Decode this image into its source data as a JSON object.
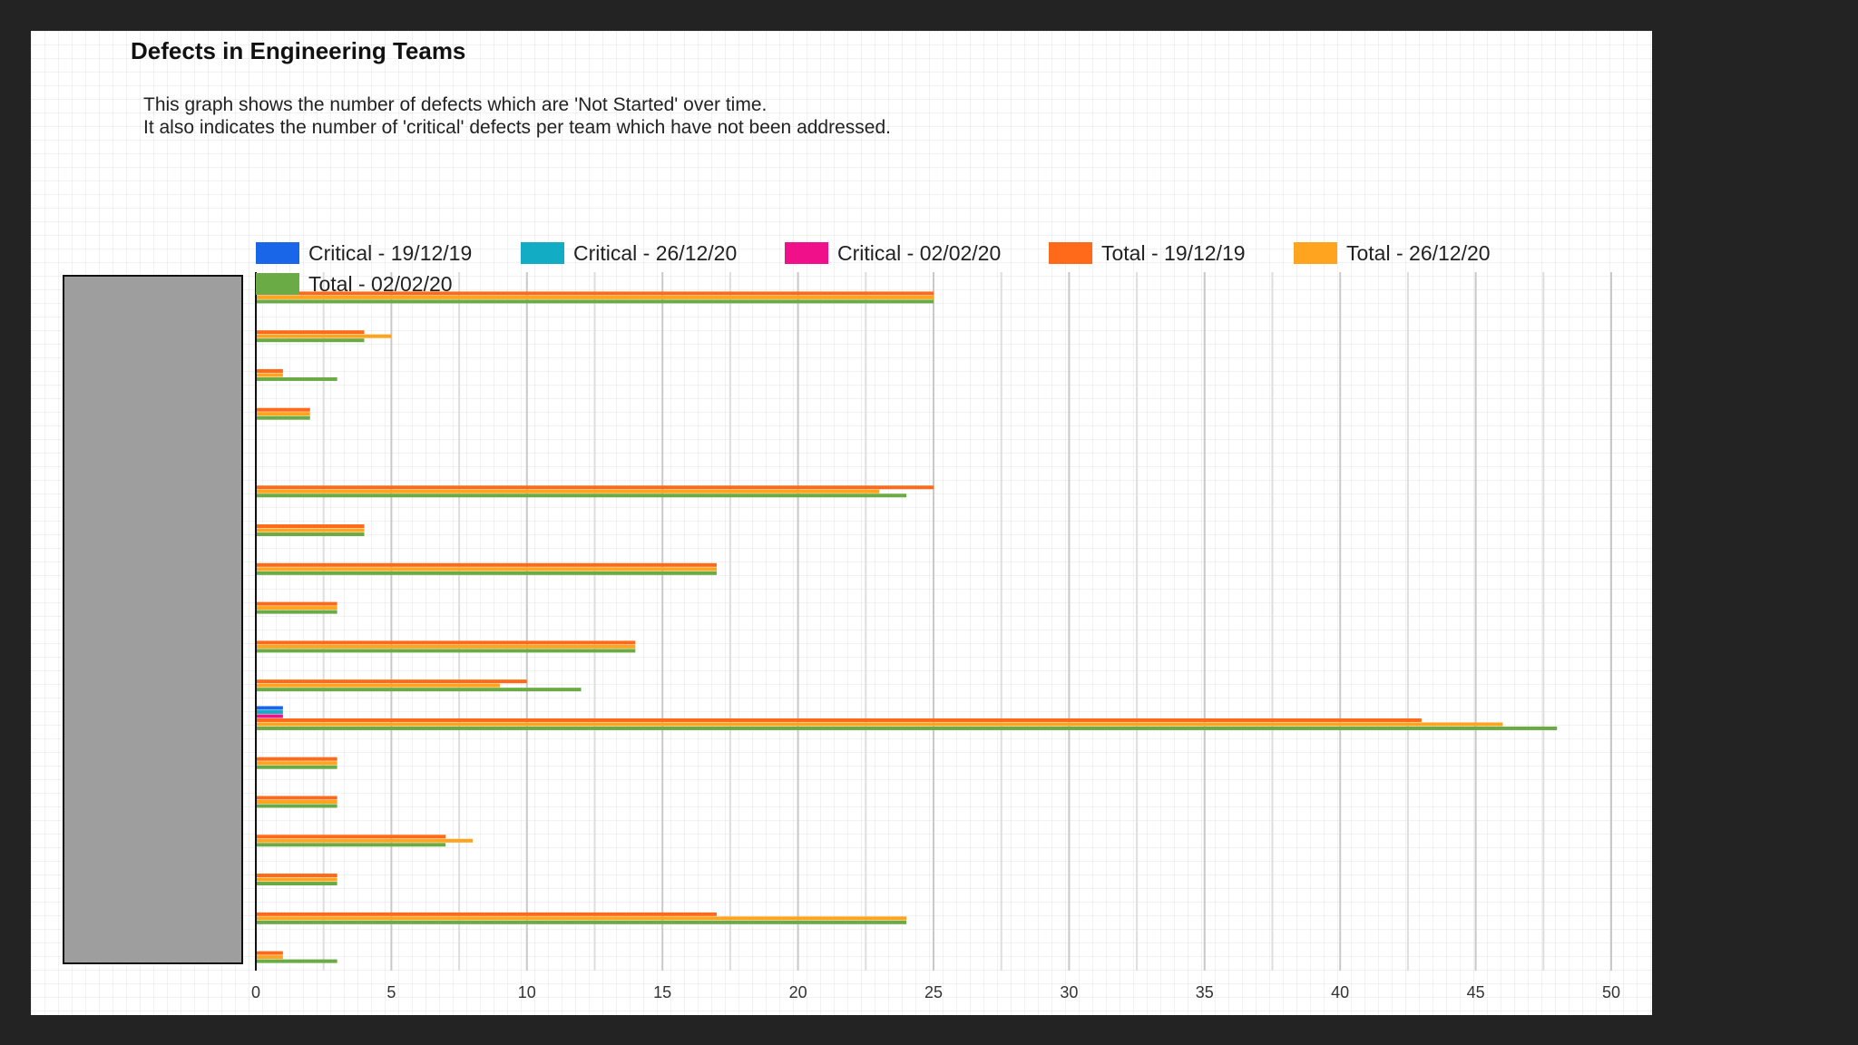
{
  "header": {
    "title": "Defects in Engineering Teams",
    "description_line1": "This graph shows the number of defects which are 'Not Started' over time.",
    "description_line2": "It also indicates the number of 'critical' defects per team which have not been addressed."
  },
  "colors": {
    "critical_191219": "#1a66e8",
    "critical_261220": "#12acc4",
    "critical_020220": "#f0118a",
    "total_191219": "#ff6a1a",
    "total_261220": "#ffa41f",
    "total_020220": "#6aab45",
    "category_label_redaction": "#9e9e9e"
  },
  "chart_data": {
    "type": "bar",
    "orientation": "horizontal",
    "title": "Defects in Engineering Teams",
    "xlabel": "",
    "ylabel": "",
    "xlim": [
      0,
      50
    ],
    "xticks": [
      0,
      5,
      10,
      15,
      20,
      25,
      30,
      35,
      40,
      45,
      50
    ],
    "grid": true,
    "legend_position": "top",
    "category_labels_visible": false,
    "series": [
      {
        "name": "Critical - 19/12/19",
        "color": "#1a66e8",
        "values": [
          0,
          0,
          0,
          0,
          0,
          0,
          0,
          0,
          0,
          0,
          0,
          1,
          0,
          0,
          0,
          0,
          0,
          0
        ]
      },
      {
        "name": "Critical - 26/12/20",
        "color": "#12acc4",
        "values": [
          0,
          0,
          0,
          0,
          0,
          0,
          0,
          0,
          0,
          0,
          0,
          1,
          0,
          0,
          0,
          0,
          0,
          0
        ]
      },
      {
        "name": "Critical - 02/02/20",
        "color": "#f0118a",
        "values": [
          0,
          0,
          0,
          0,
          0,
          0,
          0,
          0,
          0,
          0,
          0,
          1,
          0,
          0,
          0,
          0,
          0,
          0
        ]
      },
      {
        "name": "Total - 19/12/19",
        "color": "#ff6a1a",
        "values": [
          25,
          4,
          1,
          2,
          0,
          25,
          4,
          17,
          3,
          14,
          10,
          43,
          3,
          3,
          7,
          3,
          17,
          1
        ]
      },
      {
        "name": "Total - 26/12/20",
        "color": "#ffa41f",
        "values": [
          25,
          5,
          1,
          2,
          0,
          23,
          4,
          17,
          3,
          14,
          9,
          46,
          3,
          3,
          8,
          3,
          24,
          1
        ]
      },
      {
        "name": "Total - 02/02/20",
        "color": "#6aab45",
        "values": [
          25,
          4,
          3,
          2,
          0,
          24,
          4,
          17,
          3,
          14,
          12,
          48,
          3,
          3,
          7,
          3,
          24,
          3
        ]
      }
    ]
  }
}
